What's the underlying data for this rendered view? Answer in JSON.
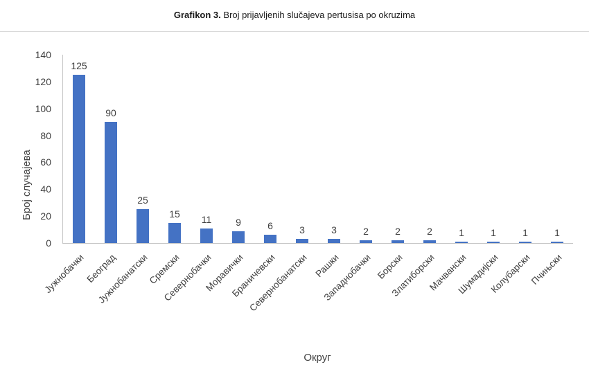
{
  "title": {
    "bold": "Grafikon 3.",
    "rest": " Broj prijavljenih slučajeva pertusisa po okruzima"
  },
  "chart_data": {
    "type": "bar",
    "title": "Grafikon 3. Broj prijavljenih slučajeva pertusisa po okruzima",
    "categories": [
      "Јужнобачки",
      "Београд",
      "Јужнобанатски",
      "Сремски",
      "Севернобачки",
      "Моравички",
      "Браничевски",
      "Севернобанатски",
      "Рашки",
      "Западнобачки",
      "Борски",
      "Златиборски",
      "Мачвански",
      "Шумадијски",
      "Колубарски",
      "Пчињски"
    ],
    "values": [
      125,
      90,
      25,
      15,
      11,
      9,
      6,
      3,
      3,
      2,
      2,
      2,
      1,
      1,
      1,
      1
    ],
    "xlabel": "Округ",
    "ylabel": "Број случајева",
    "ylim": [
      0,
      140
    ],
    "yticks": [
      0,
      20,
      40,
      60,
      80,
      100,
      120,
      140
    ],
    "bar_color": "#4472C4",
    "grid": false,
    "legend": false,
    "data_labels": true
  }
}
